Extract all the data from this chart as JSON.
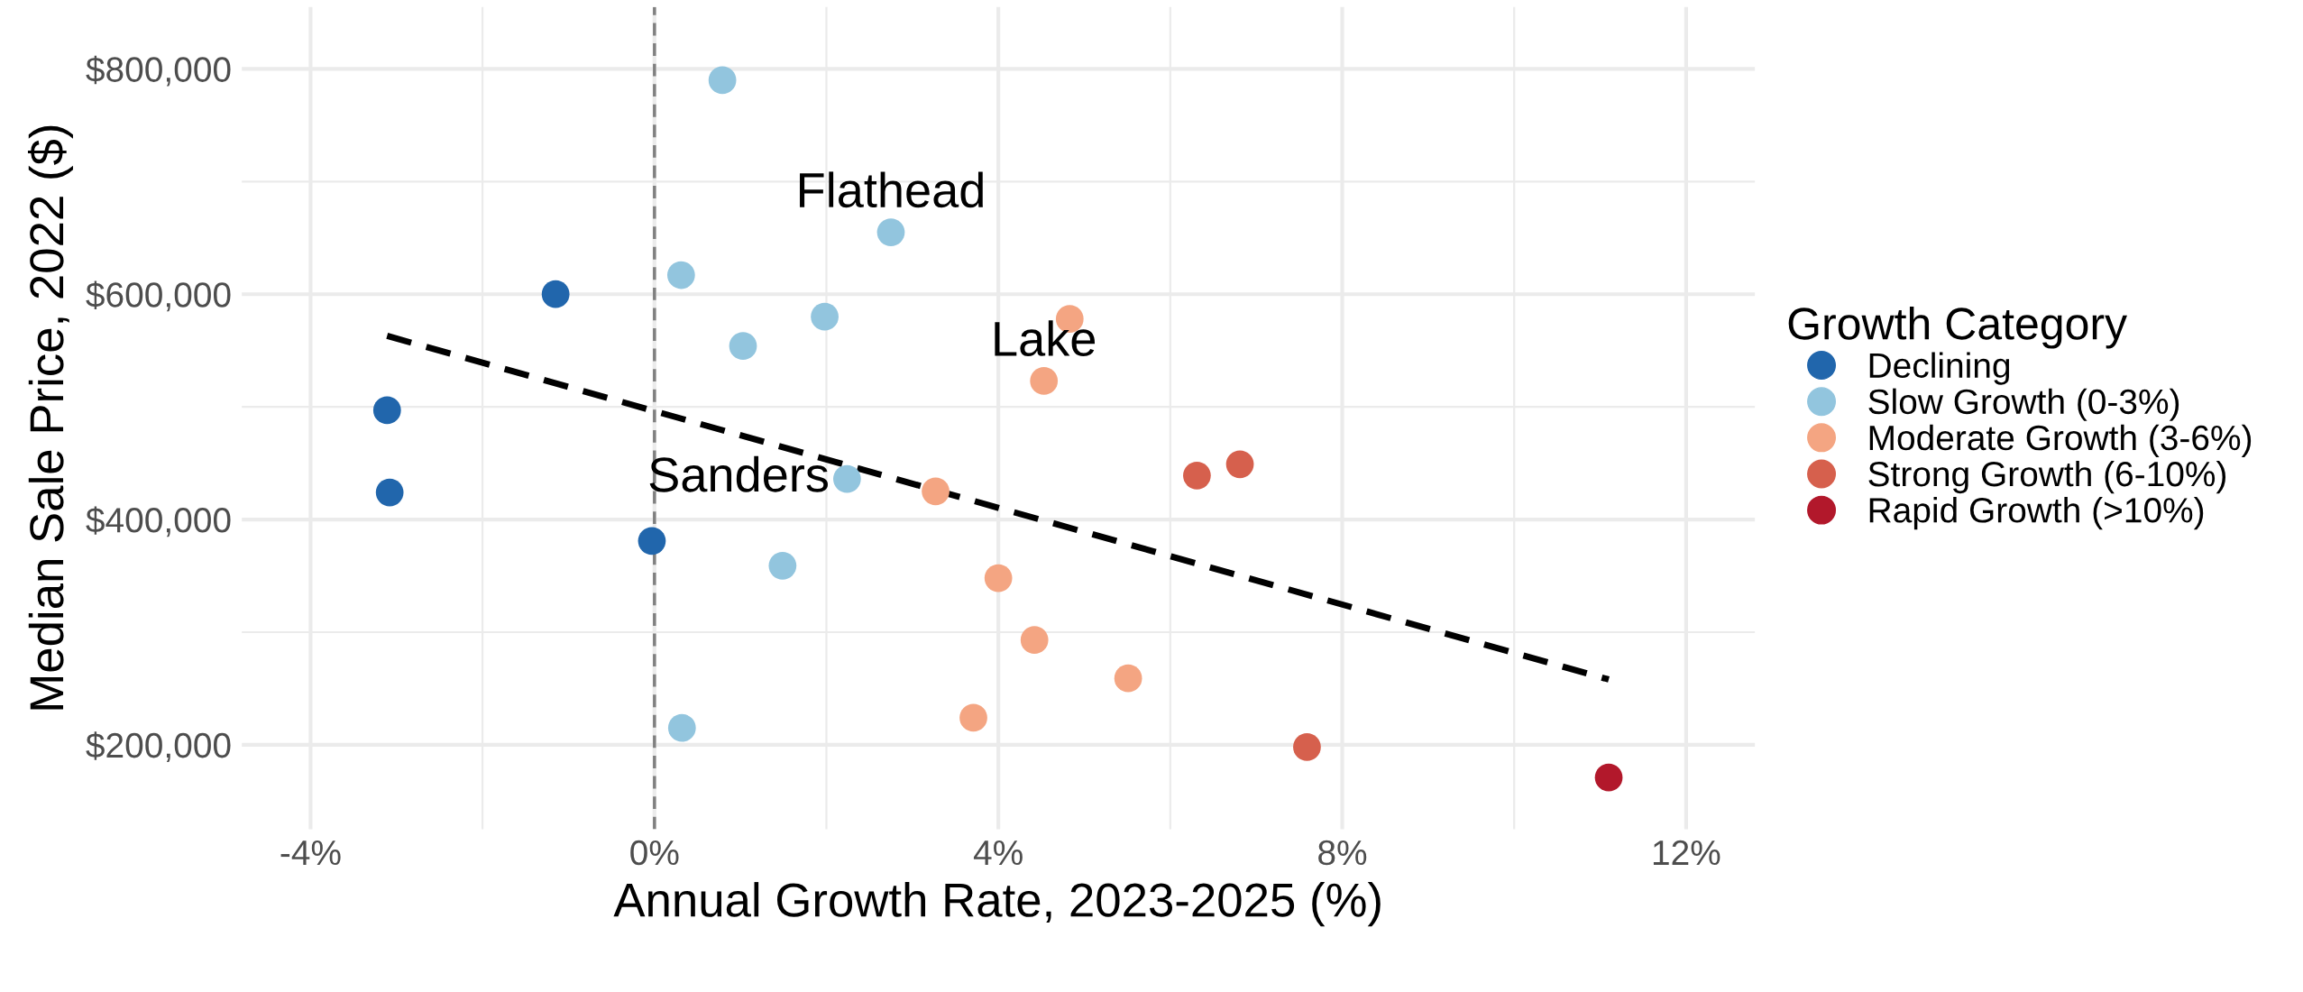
{
  "chart_data": {
    "type": "scatter",
    "xlabel": "Annual Growth Rate, 2023-2025 (%)",
    "ylabel": "Median Sale Price, 2022 ($)",
    "legend_title": "Growth Category",
    "legend": "right",
    "grid": true,
    "marker": "circle",
    "xlim": [
      -4.8,
      12.8
    ],
    "ylim": [
      125000,
      855000
    ],
    "xticks": [
      {
        "value": -4,
        "label": "-4%"
      },
      {
        "value": -2,
        "label": null
      },
      {
        "value": 0,
        "label": "0%"
      },
      {
        "value": 2,
        "label": null
      },
      {
        "value": 4,
        "label": "4%"
      },
      {
        "value": 6,
        "label": null
      },
      {
        "value": 8,
        "label": "8%"
      },
      {
        "value": 10,
        "label": null
      },
      {
        "value": 12,
        "label": "12%"
      }
    ],
    "yticks": [
      {
        "value": 200000,
        "label": "$200,000"
      },
      {
        "value": 300000,
        "label": null
      },
      {
        "value": 400000,
        "label": "$400,000"
      },
      {
        "value": 500000,
        "label": null
      },
      {
        "value": 600000,
        "label": "$600,000"
      },
      {
        "value": 700000,
        "label": null
      },
      {
        "value": 800000,
        "label": "$800,000"
      }
    ],
    "series": [
      {
        "name": "Declining",
        "color": "#2166ac",
        "x": [
          -1.15,
          -3.11,
          -3.08,
          -0.03
        ],
        "values": [
          600000,
          497000,
          424000,
          381000
        ]
      },
      {
        "name": "Slow Growth (0-3%)",
        "color": "#92c5de",
        "x": [
          0.79,
          2.75,
          0.31,
          1.98,
          1.03,
          1.49,
          2.24,
          0.32
        ],
        "values": [
          790000,
          655000,
          617000,
          580000,
          554000,
          359000,
          436000,
          215000
        ]
      },
      {
        "name": "Moderate Growth (3-6%)",
        "color": "#f4a582",
        "x": [
          4.83,
          4.53,
          3.27,
          4.0,
          4.42,
          5.51,
          3.71
        ],
        "values": [
          578000,
          523000,
          425000,
          348000,
          293000,
          259000,
          224000
        ]
      },
      {
        "name": "Strong Growth (6-10%)",
        "color": "#d6604d",
        "x": [
          6.31,
          6.81,
          7.59
        ],
        "values": [
          439000,
          449000,
          198000
        ]
      },
      {
        "name": "Rapid Growth (>10%)",
        "color": "#b2182b",
        "x": [
          11.1
        ],
        "values": [
          171000
        ]
      },
      {
        "type": "line",
        "color": "#000000",
        "line_style": "dashed",
        "marker": "none",
        "x": [
          -3.11,
          11.1
        ],
        "values": [
          563000,
          258000
        ]
      }
    ],
    "ref_lines": [
      {
        "axis": "x",
        "value": 0,
        "color": "#808080",
        "line_style": "dashed"
      }
    ],
    "annotations": [
      {
        "text": "Flathead",
        "x": 2.75,
        "y": 655000
      },
      {
        "text": "Lake",
        "x": 4.53,
        "y": 523000
      },
      {
        "text": "Sanders",
        "x": 2.24,
        "y": 436000
      }
    ]
  }
}
